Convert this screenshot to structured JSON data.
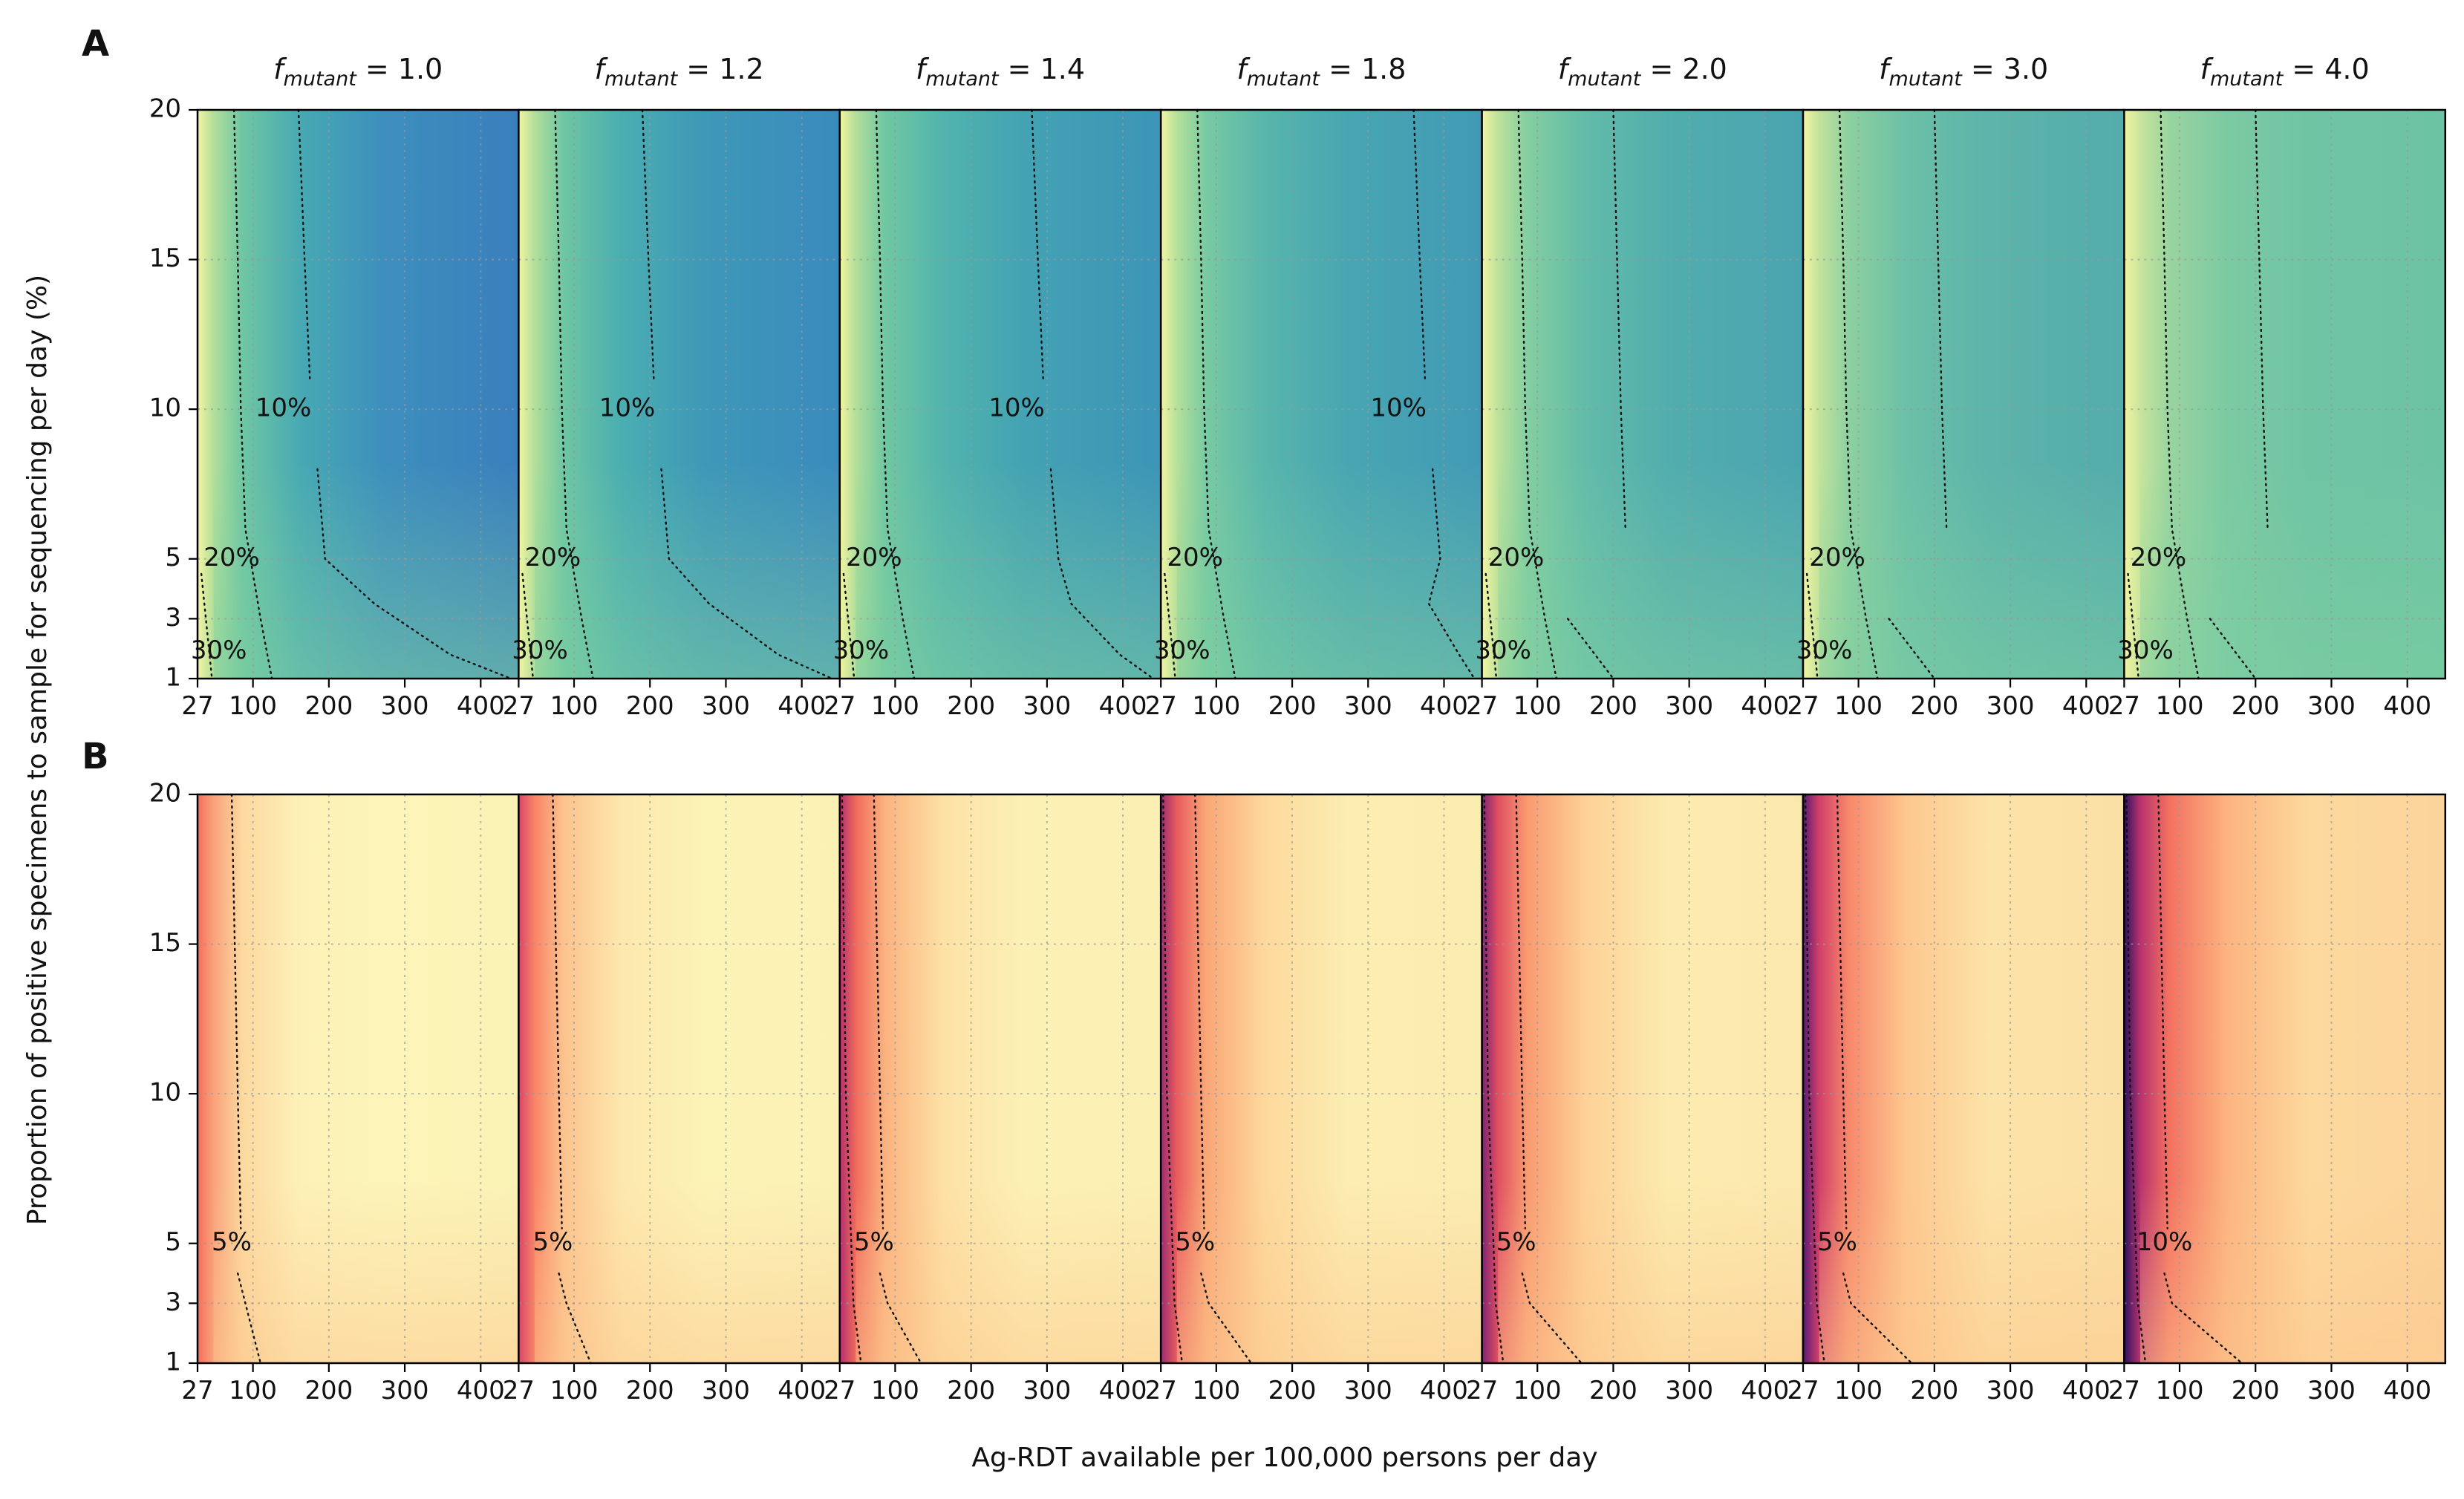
{
  "figure": {
    "panel_labels": [
      "A",
      "B"
    ],
    "xlabel": "Ag-RDT available per 100,000 persons per day",
    "ylabel": "Proportion of positive specimens to sample for sequencing per day (%)",
    "title_prefix": "f",
    "title_subscript": "mutant",
    "title_sep": " = "
  },
  "chart_data": [
    {
      "type": "heatmap",
      "panel": "A",
      "colormap": "viridis-like (yellow → green → blue)",
      "x_ticks": [
        27,
        100,
        200,
        300,
        400
      ],
      "y_ticks": [
        1,
        3,
        5,
        10,
        15,
        20
      ],
      "xlim": [
        27,
        450
      ],
      "ylim": [
        1,
        20
      ],
      "grid": true,
      "subplots": [
        {
          "f_mutant": "1.0",
          "contour_labels": [
            "10%",
            "20%",
            "30%"
          ]
        },
        {
          "f_mutant": "1.2",
          "contour_labels": [
            "10%",
            "20%",
            "30%"
          ]
        },
        {
          "f_mutant": "1.4",
          "contour_labels": [
            "10%",
            "20%",
            "30%"
          ]
        },
        {
          "f_mutant": "1.8",
          "contour_labels": [
            "10%",
            "20%",
            "30%"
          ]
        },
        {
          "f_mutant": "2.0",
          "contour_labels": [
            "20%",
            "30%"
          ]
        },
        {
          "f_mutant": "3.0",
          "contour_labels": [
            "20%",
            "30%"
          ]
        },
        {
          "f_mutant": "4.0",
          "contour_labels": [
            "20%",
            "30%"
          ]
        }
      ]
    },
    {
      "type": "heatmap",
      "panel": "B",
      "colormap": "magma-like (dark purple → red → pale yellow)",
      "x_ticks": [
        27,
        100,
        200,
        300,
        400
      ],
      "y_ticks": [
        1,
        3,
        5,
        10,
        15,
        20
      ],
      "xlim": [
        27,
        450
      ],
      "ylim": [
        1,
        20
      ],
      "grid": true,
      "subplots": [
        {
          "f_mutant": "1.0",
          "contour_labels": [
            "5%"
          ]
        },
        {
          "f_mutant": "1.2",
          "contour_labels": [
            "5%"
          ]
        },
        {
          "f_mutant": "1.4",
          "contour_labels": [
            "5%"
          ]
        },
        {
          "f_mutant": "1.8",
          "contour_labels": [
            "5%"
          ]
        },
        {
          "f_mutant": "2.0",
          "contour_labels": [
            "5%"
          ]
        },
        {
          "f_mutant": "3.0",
          "contour_labels": [
            "5%"
          ]
        },
        {
          "f_mutant": "4.0",
          "contour_labels": [
            "10%"
          ]
        }
      ]
    }
  ]
}
